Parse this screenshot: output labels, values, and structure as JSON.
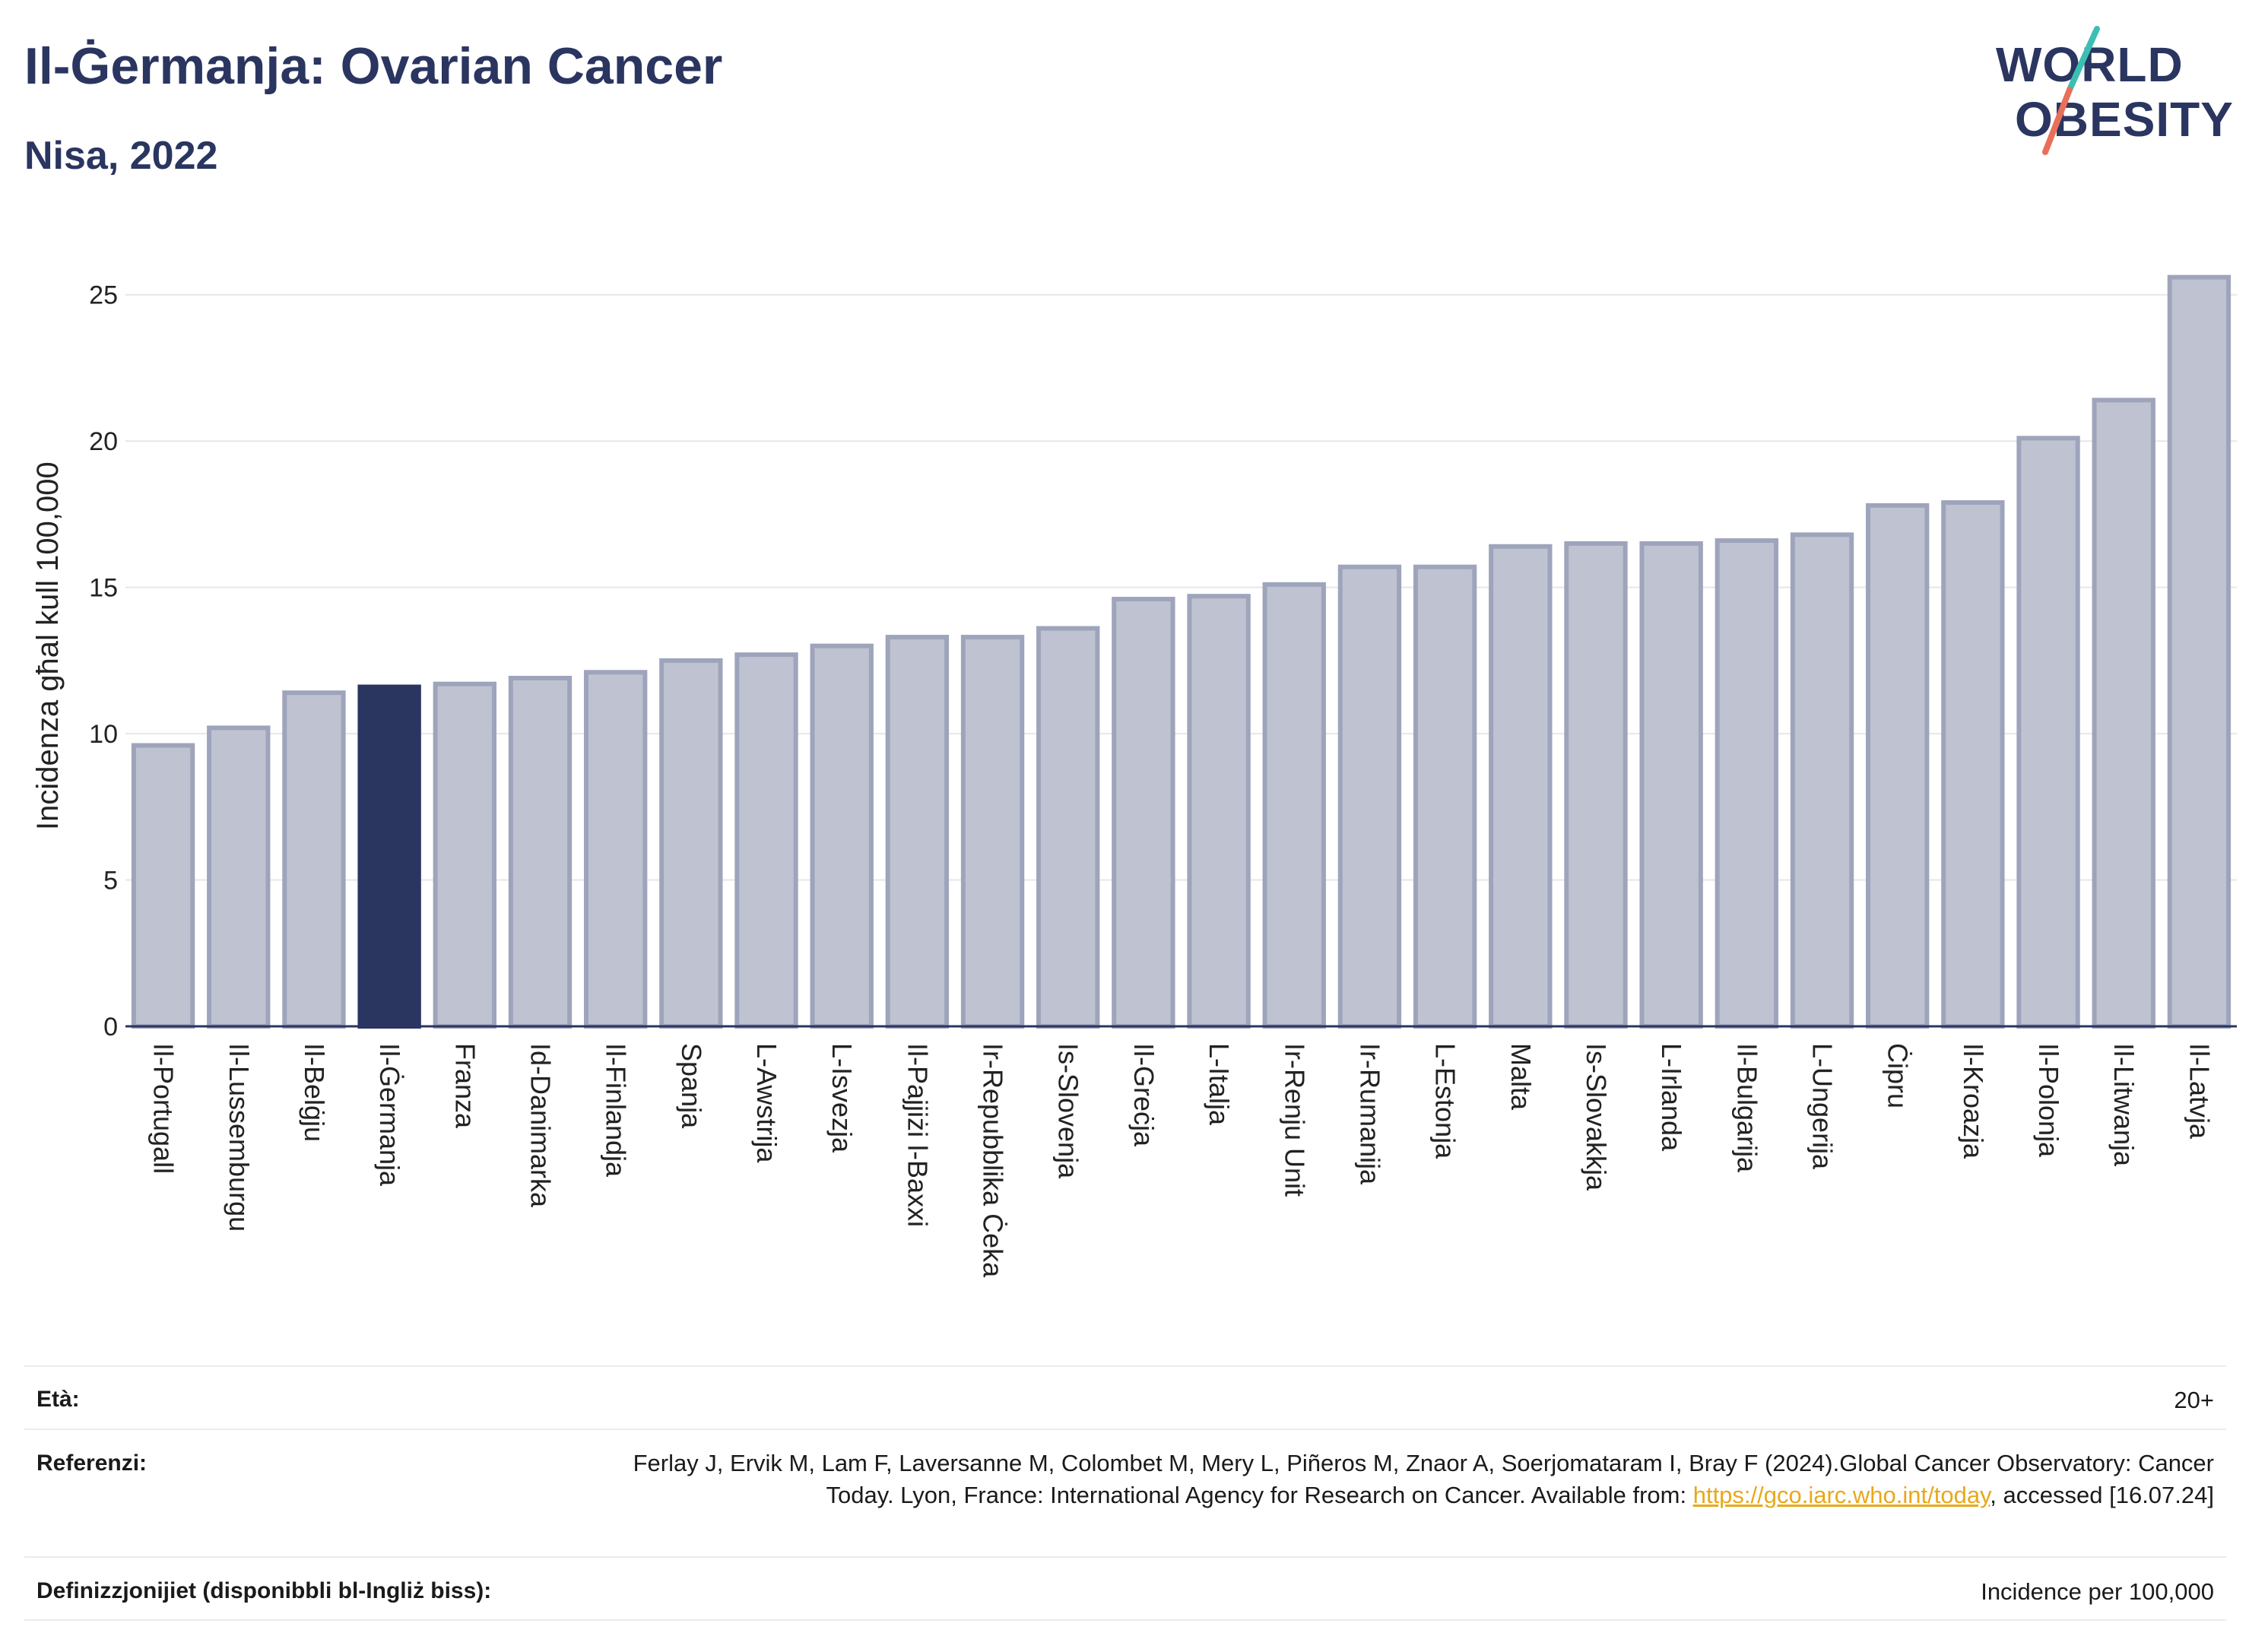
{
  "header": {
    "title": "Il-Ġermanja: Ovarian Cancer",
    "subtitle": "Nisa, 2022"
  },
  "logo": {
    "line1": "WORLD",
    "line2": "OBESITY",
    "colors": {
      "text": "#2a3560",
      "slash_top": "#3bbfb3",
      "slash_bottom": "#e8705a"
    }
  },
  "colors": {
    "bar_default": "#bfc3d1",
    "bar_default_stroke": "#9ea4bb",
    "bar_highlight": "#2a3560",
    "grid": "#e5e7eb",
    "axis": "#2a3560"
  },
  "chart_data": {
    "type": "bar",
    "ylabel": "Incidenza għal kull 100,000",
    "ylim": [
      0,
      26.5
    ],
    "yticks": [
      0,
      5,
      10,
      15,
      20,
      25
    ],
    "grid": true,
    "highlight": "Il-Ġermanja",
    "categories": [
      "Il-Portugall",
      "Il-Lussemburgu",
      "Il-Belġju",
      "Il-Ġermanja",
      "Franza",
      "Id-Danimarka",
      "Il-Finlandja",
      "Spanja",
      "L-Awstrija",
      "L-Isvezja",
      "Il-Pajjiżi l-Baxxi",
      "Ir-Repubblika Ċeka",
      "Is-Slovenja",
      "Il-Greċja",
      "L-Italja",
      "Ir-Renju Unit",
      "Ir-Rumanija",
      "L-Estonja",
      "Malta",
      "Is-Slovakkja",
      "L-Irlanda",
      "Il-Bulgarija",
      "L-Ungerija",
      "Ċipru",
      "Il-Kroazja",
      "Il-Polonja",
      "Il-Litwanja",
      "Il-Latvja"
    ],
    "values": [
      9.6,
      10.2,
      11.4,
      11.6,
      11.7,
      11.9,
      12.1,
      12.5,
      12.7,
      13.0,
      13.3,
      13.3,
      13.6,
      14.6,
      14.7,
      15.1,
      15.7,
      15.7,
      16.4,
      16.5,
      16.5,
      16.6,
      16.8,
      17.8,
      17.9,
      20.1,
      21.4,
      25.6
    ]
  },
  "info": {
    "age_label": "Età:",
    "age_value": "20+",
    "ref_label": "Referenzi:",
    "ref_text_1": "Ferlay J, Ervik M, Lam F, Laversanne M, Colombet M, Mery L, Piñeros M, Znaor A, Soerjomataram I, Bray F (2024).Global Cancer Observatory: Cancer Today. Lyon, France: International Agency for Research on Cancer. Available from: ",
    "ref_link": "https://gco.iarc.who.int/today",
    "ref_text_2": ", accessed [16.07.24]",
    "def_label": "Definizzjonijiet (disponibbli bl-Ingliż biss):",
    "def_value": "Incidence per 100,000"
  }
}
